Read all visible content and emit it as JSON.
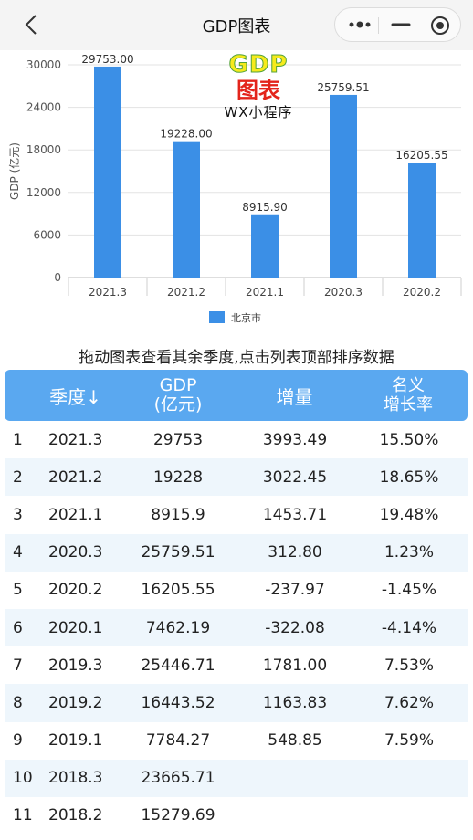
{
  "app": {
    "title": "GDP图表"
  },
  "logo": {
    "line1": "GDP",
    "line2": "图表",
    "line3": "WX小程序"
  },
  "hint": "拖动图表查看其余季度,点击列表顶部排序数据",
  "table": {
    "headers": {
      "season": "季度↓",
      "gdp_1": "GDP",
      "gdp_2": "(亿元)",
      "inc": "增量",
      "rate_1": "名义",
      "rate_2": "增长率"
    },
    "rows": [
      {
        "idx": "1",
        "season": "2021.3",
        "gdp": "29753",
        "inc": "3993.49",
        "rate": "15.50%"
      },
      {
        "idx": "2",
        "season": "2021.2",
        "gdp": "19228",
        "inc": "3022.45",
        "rate": "18.65%"
      },
      {
        "idx": "3",
        "season": "2021.1",
        "gdp": "8915.9",
        "inc": "1453.71",
        "rate": "19.48%"
      },
      {
        "idx": "4",
        "season": "2020.3",
        "gdp": "25759.51",
        "inc": "312.80",
        "rate": "1.23%"
      },
      {
        "idx": "5",
        "season": "2020.2",
        "gdp": "16205.55",
        "inc": "-237.97",
        "rate": "-1.45%"
      },
      {
        "idx": "6",
        "season": "2020.1",
        "gdp": "7462.19",
        "inc": "-322.08",
        "rate": "-4.14%"
      },
      {
        "idx": "7",
        "season": "2019.3",
        "gdp": "25446.71",
        "inc": "1781.00",
        "rate": "7.53%"
      },
      {
        "idx": "8",
        "season": "2019.2",
        "gdp": "16443.52",
        "inc": "1163.83",
        "rate": "7.62%"
      },
      {
        "idx": "9",
        "season": "2019.1",
        "gdp": "7784.27",
        "inc": "548.85",
        "rate": "7.59%"
      },
      {
        "idx": "10",
        "season": "2018.3",
        "gdp": "23665.71",
        "inc": "",
        "rate": ""
      },
      {
        "idx": "11",
        "season": "2018.2",
        "gdp": "15279.69",
        "inc": "",
        "rate": ""
      }
    ]
  },
  "chart_data": {
    "type": "bar",
    "categories": [
      "2021.3",
      "2021.2",
      "2021.1",
      "2020.3",
      "2020.2"
    ],
    "series": [
      {
        "name": "北京市",
        "values": [
          29753.0,
          19228.0,
          8915.9,
          25759.51,
          16205.55
        ]
      }
    ],
    "data_labels": [
      "29753.00",
      "19228.00",
      "8915.90",
      "25759.51",
      "16205.55"
    ],
    "ylabel": "GDP (亿元)",
    "ylim": [
      0,
      30000
    ],
    "yticks": [
      0,
      6000,
      12000,
      18000,
      24000,
      30000
    ],
    "grid": true,
    "legend": "bottom",
    "color": "#3b8fe6"
  }
}
